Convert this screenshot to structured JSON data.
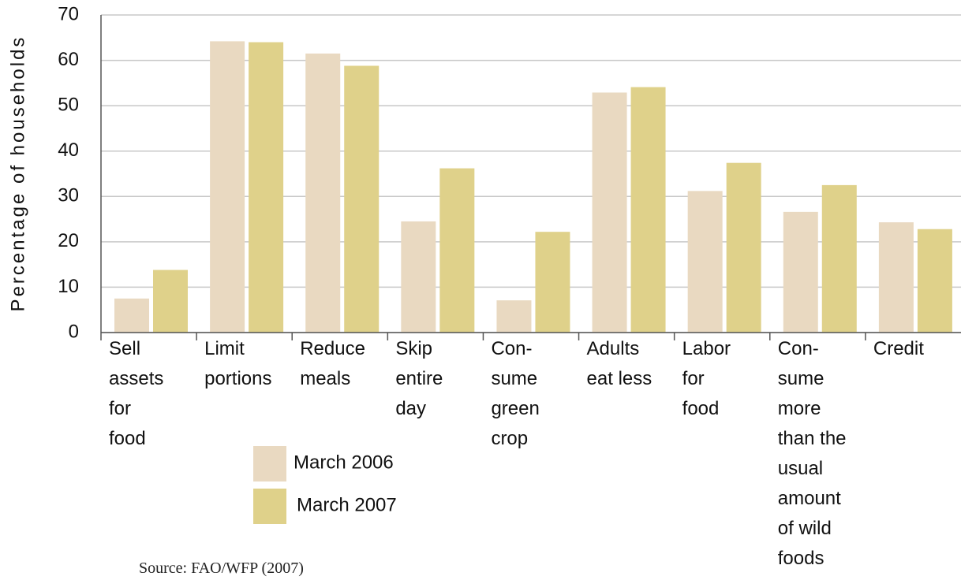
{
  "chart_data": {
    "type": "bar",
    "ylabel": "Percentage of households",
    "categories": [
      "Sell\nassets\nfor\nfood",
      "Limit\nportions",
      "Reduce\nmeals",
      "Skip\nentire\nday",
      "Con-\nsume\ngreen\ncrop",
      "Adults\neat less",
      "Labor\nfor\nfood",
      "Con-\nsume\nmore\nthan the\nusual\namount\nof wild\nfoods",
      "Credit"
    ],
    "series": [
      {
        "name": "March 2006",
        "color": "#e9d9c1",
        "values": [
          7.5,
          64.2,
          61.5,
          24.5,
          7.1,
          52.9,
          31.2,
          26.6,
          24.3
        ]
      },
      {
        "name": "March 2007",
        "color": "#dfd18a",
        "values": [
          13.8,
          64.0,
          58.8,
          36.2,
          22.2,
          54.1,
          37.4,
          32.5,
          22.8
        ]
      }
    ],
    "ylim": [
      0,
      70
    ],
    "yticks": [
      0,
      10,
      20,
      30,
      40,
      50,
      60,
      70
    ],
    "grid": true,
    "source": "Source: FAO/WFP (2007)"
  }
}
